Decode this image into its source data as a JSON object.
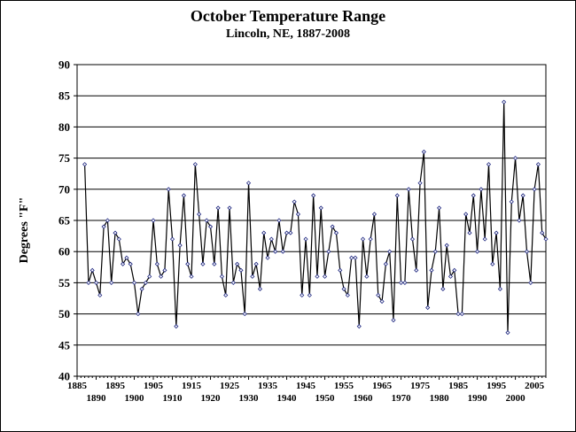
{
  "chart_data": {
    "type": "line",
    "title": "October Temperature Range",
    "subtitle": "Lincoln, NE, 1887-2008",
    "ylabel": "Degrees \"F\"",
    "xlabel": "",
    "ylim": [
      40,
      90
    ],
    "yticks": [
      40,
      45,
      50,
      55,
      60,
      65,
      70,
      75,
      80,
      85,
      90
    ],
    "xlim": [
      1885,
      2008
    ],
    "xticks_top": [
      1885,
      1895,
      1905,
      1915,
      1925,
      1935,
      1945,
      1955,
      1965,
      1975,
      1985,
      1995,
      2005
    ],
    "xticks_bottom": [
      1890,
      1900,
      1910,
      1920,
      1930,
      1940,
      1950,
      1960,
      1970,
      1980,
      1990,
      2000
    ],
    "grid": true,
    "legend": "none",
    "series": [
      {
        "x": [
          1887,
          1888,
          1889,
          1890,
          1891,
          1892,
          1893,
          1894,
          1895,
          1896,
          1897,
          1898,
          1899,
          1900,
          1901,
          1902,
          1903,
          1904,
          1905,
          1906,
          1907,
          1908,
          1909,
          1910,
          1911,
          1912,
          1913,
          1914,
          1915,
          1916,
          1917,
          1918,
          1919,
          1920,
          1921,
          1922,
          1923,
          1924,
          1925,
          1926,
          1927,
          1928,
          1929,
          1930,
          1931,
          1932,
          1933,
          1934,
          1935,
          1936,
          1937,
          1938,
          1939,
          1940,
          1941,
          1942,
          1943,
          1944,
          1945,
          1946,
          1947,
          1948,
          1949,
          1950,
          1951,
          1952,
          1953,
          1954,
          1955,
          1956,
          1957,
          1958,
          1959,
          1960,
          1961,
          1962,
          1963,
          1964,
          1965,
          1966,
          1967,
          1968,
          1969,
          1970,
          1971,
          1972,
          1973,
          1974,
          1975,
          1976,
          1977,
          1978,
          1979,
          1980,
          1981,
          1982,
          1983,
          1984,
          1985,
          1986,
          1987,
          1988,
          1989,
          1990,
          1991,
          1992,
          1993,
          1994,
          1995,
          1996,
          1997,
          1998,
          1999,
          2000,
          2001,
          2002,
          2003,
          2004,
          2005,
          2006,
          2007,
          2008
        ],
        "values": [
          74,
          55,
          57,
          55,
          53,
          64,
          65,
          55,
          63,
          62,
          58,
          59,
          58,
          55,
          50,
          54,
          55,
          56,
          65,
          58,
          56,
          57,
          70,
          62,
          48,
          61,
          69,
          58,
          56,
          74,
          66,
          58,
          65,
          64,
          58,
          67,
          56,
          53,
          67,
          55,
          58,
          57,
          50,
          71,
          56,
          58,
          54,
          63,
          59,
          62,
          60,
          65,
          60,
          63,
          63,
          68,
          66,
          53,
          62,
          53,
          69,
          56,
          67,
          56,
          60,
          64,
          63,
          57,
          54,
          53,
          59,
          59,
          48,
          62,
          56,
          62,
          66,
          53,
          52,
          58,
          60,
          49,
          69,
          55,
          55,
          70,
          62,
          57,
          71,
          76,
          51,
          57,
          60,
          67,
          54,
          61,
          56,
          57,
          50,
          50,
          66,
          63,
          69,
          60,
          70,
          62,
          74,
          58,
          63,
          54,
          84,
          47,
          68,
          75,
          65,
          69,
          60,
          55,
          70,
          74,
          63,
          62
        ]
      }
    ]
  }
}
